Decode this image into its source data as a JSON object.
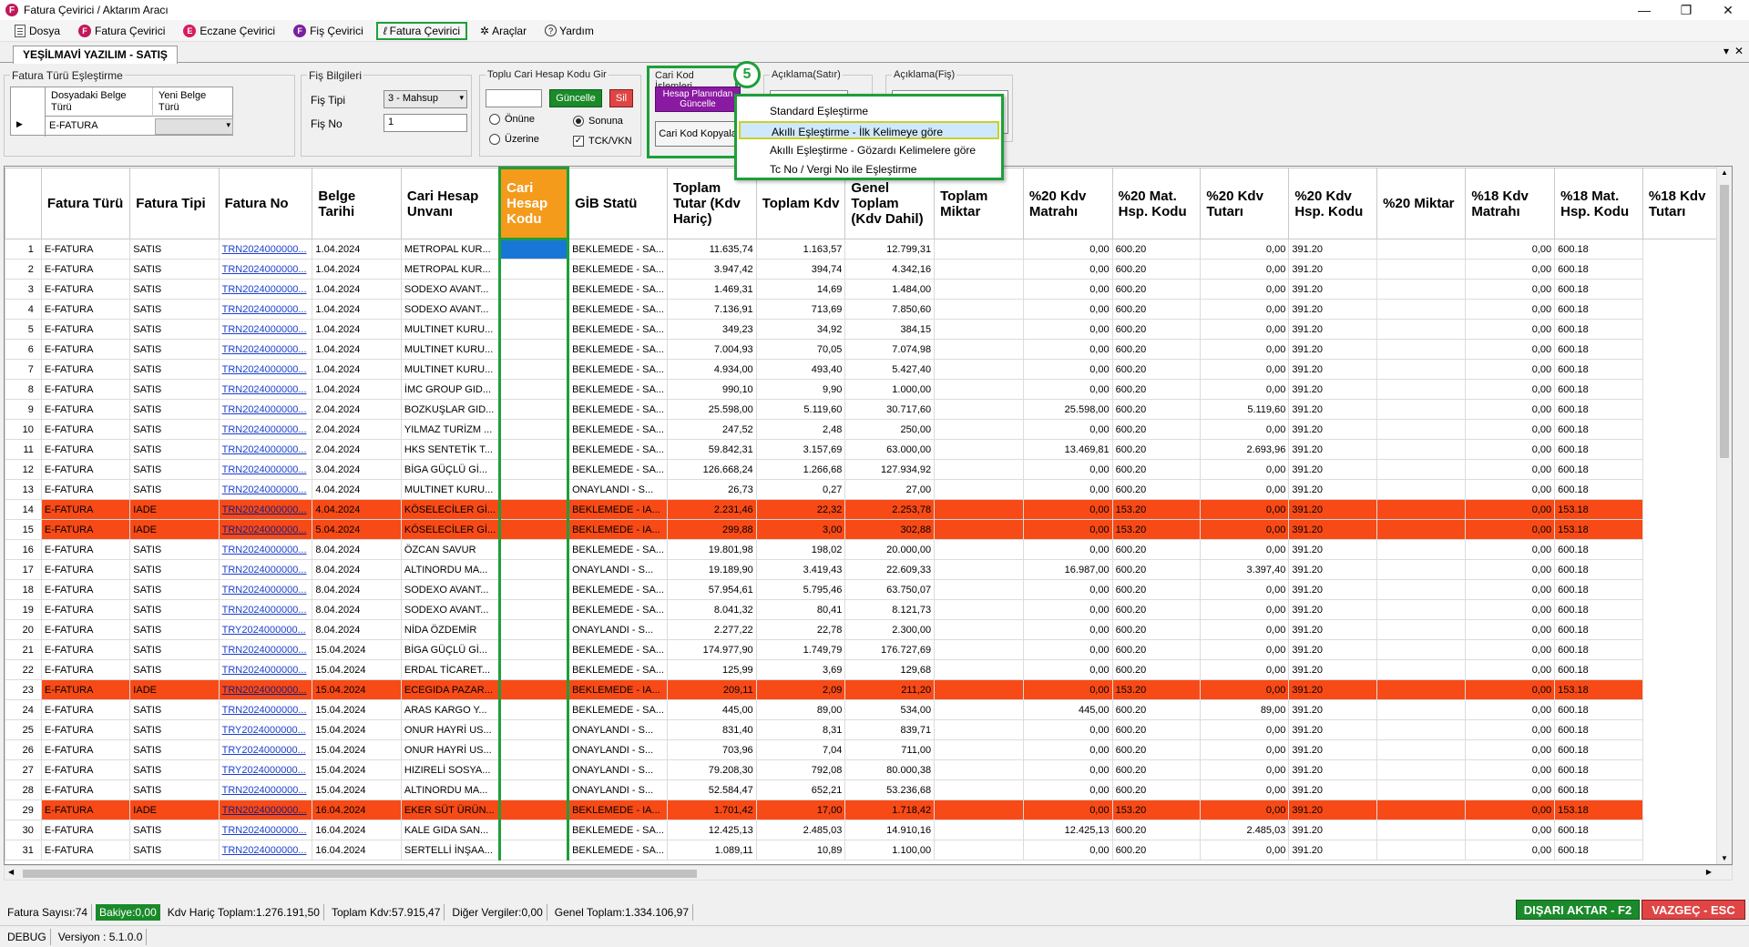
{
  "window": {
    "title": "Fatura Çevirici / Aktarım Aracı",
    "minimize": "—",
    "maximize": "❐",
    "close": "✕"
  },
  "menu": [
    {
      "label": "Dosya",
      "icon": "document-icon"
    },
    {
      "label": "Fatura Çevirici",
      "icon": "f-logo-icon",
      "color": "#c2185b",
      "glyph": "F"
    },
    {
      "label": "Eczane Çevirici",
      "icon": "e-logo-icon",
      "color": "#d81b60",
      "glyph": "E"
    },
    {
      "label": "Fiş Çevirici",
      "icon": "f-purple-icon",
      "color": "#7b1fa2",
      "glyph": "F"
    },
    {
      "label": "Fatura Çevirici",
      "icon": "e-script-icon",
      "glyph": "ℓ"
    },
    {
      "label": "Araçlar",
      "icon": "tools-icon",
      "glyph": "✲"
    },
    {
      "label": "Yardım",
      "icon": "help-icon",
      "glyph": "?"
    }
  ],
  "tab": {
    "label": "YEŞİLMAVİ YAZILIM - SATIŞ",
    "close": "✕",
    "chevron": "▾"
  },
  "fatura_turu": {
    "group": "Fatura Türü Eşleştirme",
    "col1": "Dosyadaki Belge Türü",
    "col2": "Yeni Belge Türü",
    "row_value": "E-FATURA",
    "row_marker": "▶"
  },
  "fis_bilgileri": {
    "group": "Fiş Bilgileri",
    "tip_label": "Fiş Tipi",
    "tip_value": "3 - Mahsup",
    "no_label": "Fiş No",
    "no_value": "1"
  },
  "toplu": {
    "group": "Toplu Cari Hesap Kodu Gir",
    "update": "Güncelle",
    "delete": "Sil",
    "onune": "Önüne",
    "sonuna": "Sonuna",
    "uzerine": "Üzerine",
    "tck": "TCK/VKN"
  },
  "cari_kod": {
    "group": "Cari Kod İşlemleri",
    "hesap_btn": "Hesap Planından Güncelle",
    "kopyala": "Cari Kod Kopyala",
    "badge": "5"
  },
  "aciklama_satir": {
    "group": "Açıklama(Satır)"
  },
  "aciklama_fis": {
    "group": "Açıklama(Fiş)"
  },
  "dropdown": [
    "Standard Eşleştirme",
    "Akıllı Eşleştirme - İlk Kelimeye göre",
    "Akıllı Eşleştirme - Gözardı Kelimelere göre",
    "Tc No / Vergi No ile Eşleştirme"
  ],
  "columns": [
    "Fatura Türü",
    "Fatura Tipi",
    "Fatura No",
    "Belge Tarihi",
    "Cari Hesap Unvanı",
    "Cari Hesap Kodu",
    "GİB Statü",
    "Toplam Tutar (Kdv Hariç)",
    "Toplam Kdv",
    "Genel Toplam (Kdv Dahil)",
    "Toplam Miktar",
    "%20 Kdv Matrahı",
    "%20 Mat. Hsp. Kodu",
    "%20 Kdv Tutarı",
    "%20 Kdv Hsp. Kodu",
    "%20 Miktar",
    "%18 Kdv Matrahı",
    "%18 Mat. Hsp. Kodu",
    "%18 Kdv Tutarı"
  ],
  "rows": [
    [
      "1",
      "E-FATURA",
      "SATIS",
      "TRN2024000000...",
      "1.04.2024",
      "METROPAL KUR...",
      "",
      "BEKLEMEDE - SA...",
      "11.635,74",
      "1.163,57",
      "12.799,31",
      "",
      "0,00",
      "600.20",
      "0,00",
      "391.20",
      "",
      "0,00",
      "600.18"
    ],
    [
      "2",
      "E-FATURA",
      "SATIS",
      "TRN2024000000...",
      "1.04.2024",
      "METROPAL KUR...",
      "",
      "BEKLEMEDE - SA...",
      "3.947,42",
      "394,74",
      "4.342,16",
      "",
      "0,00",
      "600.20",
      "0,00",
      "391.20",
      "",
      "0,00",
      "600.18"
    ],
    [
      "3",
      "E-FATURA",
      "SATIS",
      "TRN2024000000...",
      "1.04.2024",
      "SODEXO AVANT...",
      "",
      "BEKLEMEDE - SA...",
      "1.469,31",
      "14,69",
      "1.484,00",
      "",
      "0,00",
      "600.20",
      "0,00",
      "391.20",
      "",
      "0,00",
      "600.18"
    ],
    [
      "4",
      "E-FATURA",
      "SATIS",
      "TRN2024000000...",
      "1.04.2024",
      "SODEXO AVANT...",
      "",
      "BEKLEMEDE - SA...",
      "7.136,91",
      "713,69",
      "7.850,60",
      "",
      "0,00",
      "600.20",
      "0,00",
      "391.20",
      "",
      "0,00",
      "600.18"
    ],
    [
      "5",
      "E-FATURA",
      "SATIS",
      "TRN2024000000...",
      "1.04.2024",
      "MULTINET KURU...",
      "",
      "BEKLEMEDE - SA...",
      "349,23",
      "34,92",
      "384,15",
      "",
      "0,00",
      "600.20",
      "0,00",
      "391.20",
      "",
      "0,00",
      "600.18"
    ],
    [
      "6",
      "E-FATURA",
      "SATIS",
      "TRN2024000000...",
      "1.04.2024",
      "MULTINET KURU...",
      "",
      "BEKLEMEDE - SA...",
      "7.004,93",
      "70,05",
      "7.074,98",
      "",
      "0,00",
      "600.20",
      "0,00",
      "391.20",
      "",
      "0,00",
      "600.18"
    ],
    [
      "7",
      "E-FATURA",
      "SATIS",
      "TRN2024000000...",
      "1.04.2024",
      "MULTINET KURU...",
      "",
      "BEKLEMEDE - SA...",
      "4.934,00",
      "493,40",
      "5.427,40",
      "",
      "0,00",
      "600.20",
      "0,00",
      "391.20",
      "",
      "0,00",
      "600.18"
    ],
    [
      "8",
      "E-FATURA",
      "SATIS",
      "TRN2024000000...",
      "1.04.2024",
      "İMC GROUP GID...",
      "",
      "BEKLEMEDE - SA...",
      "990,10",
      "9,90",
      "1.000,00",
      "",
      "0,00",
      "600.20",
      "0,00",
      "391.20",
      "",
      "0,00",
      "600.18"
    ],
    [
      "9",
      "E-FATURA",
      "SATIS",
      "TRN2024000000...",
      "2.04.2024",
      "BOZKUŞLAR GID...",
      "",
      "BEKLEMEDE - SA...",
      "25.598,00",
      "5.119,60",
      "30.717,60",
      "",
      "25.598,00",
      "600.20",
      "5.119,60",
      "391.20",
      "",
      "0,00",
      "600.18"
    ],
    [
      "10",
      "E-FATURA",
      "SATIS",
      "TRN2024000000...",
      "2.04.2024",
      "YILMAZ TURİZM ...",
      "",
      "BEKLEMEDE - SA...",
      "247,52",
      "2,48",
      "250,00",
      "",
      "0,00",
      "600.20",
      "0,00",
      "391.20",
      "",
      "0,00",
      "600.18"
    ],
    [
      "11",
      "E-FATURA",
      "SATIS",
      "TRN2024000000...",
      "2.04.2024",
      "HKS SENTETİK T...",
      "",
      "BEKLEMEDE - SA...",
      "59.842,31",
      "3.157,69",
      "63.000,00",
      "",
      "13.469,81",
      "600.20",
      "2.693,96",
      "391.20",
      "",
      "0,00",
      "600.18"
    ],
    [
      "12",
      "E-FATURA",
      "SATIS",
      "TRN2024000000...",
      "3.04.2024",
      "BİGA GÜÇLÜ Gİ...",
      "",
      "BEKLEMEDE - SA...",
      "126.668,24",
      "1.266,68",
      "127.934,92",
      "",
      "0,00",
      "600.20",
      "0,00",
      "391.20",
      "",
      "0,00",
      "600.18"
    ],
    [
      "13",
      "E-FATURA",
      "SATIS",
      "TRN2024000000...",
      "4.04.2024",
      "MULTINET KURU...",
      "",
      "ONAYLANDI - S...",
      "26,73",
      "0,27",
      "27,00",
      "",
      "0,00",
      "600.20",
      "0,00",
      "391.20",
      "",
      "0,00",
      "600.18"
    ],
    [
      "14",
      "E-FATURA",
      "IADE",
      "TRN2024000000...",
      "4.04.2024",
      "KÖSELECİLER Gİ...",
      "",
      "BEKLEMEDE - IA...",
      "2.231,46",
      "22,32",
      "2.253,78",
      "",
      "0,00",
      "153.20",
      "0,00",
      "391.20",
      "",
      "0,00",
      "153.18"
    ],
    [
      "15",
      "E-FATURA",
      "IADE",
      "TRN2024000000...",
      "5.04.2024",
      "KÖSELECİLER Gİ...",
      "",
      "BEKLEMEDE - IA...",
      "299,88",
      "3,00",
      "302,88",
      "",
      "0,00",
      "153.20",
      "0,00",
      "391.20",
      "",
      "0,00",
      "153.18"
    ],
    [
      "16",
      "E-FATURA",
      "SATIS",
      "TRN2024000000...",
      "8.04.2024",
      "ÖZCAN SAVUR",
      "",
      "BEKLEMEDE - SA...",
      "19.801,98",
      "198,02",
      "20.000,00",
      "",
      "0,00",
      "600.20",
      "0,00",
      "391.20",
      "",
      "0,00",
      "600.18"
    ],
    [
      "17",
      "E-FATURA",
      "SATIS",
      "TRN2024000000...",
      "8.04.2024",
      "ALTINORDU MA...",
      "",
      "ONAYLANDI - S...",
      "19.189,90",
      "3.419,43",
      "22.609,33",
      "",
      "16.987,00",
      "600.20",
      "3.397,40",
      "391.20",
      "",
      "0,00",
      "600.18"
    ],
    [
      "18",
      "E-FATURA",
      "SATIS",
      "TRN2024000000...",
      "8.04.2024",
      "SODEXO AVANT...",
      "",
      "BEKLEMEDE - SA...",
      "57.954,61",
      "5.795,46",
      "63.750,07",
      "",
      "0,00",
      "600.20",
      "0,00",
      "391.20",
      "",
      "0,00",
      "600.18"
    ],
    [
      "19",
      "E-FATURA",
      "SATIS",
      "TRN2024000000...",
      "8.04.2024",
      "SODEXO AVANT...",
      "",
      "BEKLEMEDE - SA...",
      "8.041,32",
      "80,41",
      "8.121,73",
      "",
      "0,00",
      "600.20",
      "0,00",
      "391.20",
      "",
      "0,00",
      "600.18"
    ],
    [
      "20",
      "E-FATURA",
      "SATIS",
      "TRY2024000000...",
      "8.04.2024",
      "NİDA ÖZDEMİR",
      "",
      "ONAYLANDI - S...",
      "2.277,22",
      "22,78",
      "2.300,00",
      "",
      "0,00",
      "600.20",
      "0,00",
      "391.20",
      "",
      "0,00",
      "600.18"
    ],
    [
      "21",
      "E-FATURA",
      "SATIS",
      "TRN2024000000...",
      "15.04.2024",
      "BİGA GÜÇLÜ Gİ...",
      "",
      "BEKLEMEDE - SA...",
      "174.977,90",
      "1.749,79",
      "176.727,69",
      "",
      "0,00",
      "600.20",
      "0,00",
      "391.20",
      "",
      "0,00",
      "600.18"
    ],
    [
      "22",
      "E-FATURA",
      "SATIS",
      "TRN2024000000...",
      "15.04.2024",
      "ERDAL TİCARET...",
      "",
      "BEKLEMEDE - SA...",
      "125,99",
      "3,69",
      "129,68",
      "",
      "0,00",
      "600.20",
      "0,00",
      "391.20",
      "",
      "0,00",
      "600.18"
    ],
    [
      "23",
      "E-FATURA",
      "IADE",
      "TRN2024000000...",
      "15.04.2024",
      "ECEGIDA PAZAR...",
      "",
      "BEKLEMEDE - IA...",
      "209,11",
      "2,09",
      "211,20",
      "",
      "0,00",
      "153.20",
      "0,00",
      "391.20",
      "",
      "0,00",
      "153.18"
    ],
    [
      "24",
      "E-FATURA",
      "SATIS",
      "TRN2024000000...",
      "15.04.2024",
      "ARAS KARGO Y...",
      "",
      "BEKLEMEDE - SA...",
      "445,00",
      "89,00",
      "534,00",
      "",
      "445,00",
      "600.20",
      "89,00",
      "391.20",
      "",
      "0,00",
      "600.18"
    ],
    [
      "25",
      "E-FATURA",
      "SATIS",
      "TRY2024000000...",
      "15.04.2024",
      "ONUR HAYRİ US...",
      "",
      "ONAYLANDI - S...",
      "831,40",
      "8,31",
      "839,71",
      "",
      "0,00",
      "600.20",
      "0,00",
      "391.20",
      "",
      "0,00",
      "600.18"
    ],
    [
      "26",
      "E-FATURA",
      "SATIS",
      "TRY2024000000...",
      "15.04.2024",
      "ONUR HAYRİ US...",
      "",
      "ONAYLANDI - S...",
      "703,96",
      "7,04",
      "711,00",
      "",
      "0,00",
      "600.20",
      "0,00",
      "391.20",
      "",
      "0,00",
      "600.18"
    ],
    [
      "27",
      "E-FATURA",
      "SATIS",
      "TRY2024000000...",
      "15.04.2024",
      "HIZIRELİ SOSYA...",
      "",
      "ONAYLANDI - S...",
      "79.208,30",
      "792,08",
      "80.000,38",
      "",
      "0,00",
      "600.20",
      "0,00",
      "391.20",
      "",
      "0,00",
      "600.18"
    ],
    [
      "28",
      "E-FATURA",
      "SATIS",
      "TRN2024000000...",
      "15.04.2024",
      "ALTINORDU MA...",
      "",
      "ONAYLANDI - S...",
      "52.584,47",
      "652,21",
      "53.236,68",
      "",
      "0,00",
      "600.20",
      "0,00",
      "391.20",
      "",
      "0,00",
      "600.18"
    ],
    [
      "29",
      "E-FATURA",
      "IADE",
      "TRN2024000000...",
      "16.04.2024",
      "EKER SÜT ÜRÜN...",
      "",
      "BEKLEMEDE - IA...",
      "1.701,42",
      "17,00",
      "1.718,42",
      "",
      "0,00",
      "153.20",
      "0,00",
      "391.20",
      "",
      "0,00",
      "153.18"
    ],
    [
      "30",
      "E-FATURA",
      "SATIS",
      "TRN2024000000...",
      "16.04.2024",
      "KALE GIDA SAN...",
      "",
      "BEKLEMEDE - SA...",
      "12.425,13",
      "2.485,03",
      "14.910,16",
      "",
      "12.425,13",
      "600.20",
      "2.485,03",
      "391.20",
      "",
      "0,00",
      "600.18"
    ],
    [
      "31",
      "E-FATURA",
      "SATIS",
      "TRN2024000000...",
      "16.04.2024",
      "SERTELLİ İNŞAA...",
      "",
      "BEKLEMEDE - SA...",
      "1.089,11",
      "10,89",
      "1.100,00",
      "",
      "0,00",
      "600.20",
      "0,00",
      "391.20",
      "",
      "0,00",
      "600.18"
    ]
  ],
  "status": {
    "fatura_sayisi": "Fatura Sayısı:74",
    "bakiye": "Bakiye:0,00",
    "kdv_haric": "Kdv Hariç Toplam:1.276.191,50",
    "toplam_kdv": "Toplam Kdv:57.915,47",
    "diger": "Diğer Vergiler:0,00",
    "genel": "Genel Toplam:1.334.106,97"
  },
  "actions": {
    "export": "DIŞARI AKTAR - F2",
    "cancel": "VAZGEÇ - ESC"
  },
  "footer": {
    "mode": "DEBUG",
    "version": "Versiyon : 5.1.0.0"
  },
  "colors": {
    "accent_green": "#1e9f3a",
    "iade_row": "#f84a16",
    "cari_header": "#f49b1c",
    "link": "#1a3fd0",
    "export_btn": "#1a8a2a",
    "cancel_btn": "#e04545"
  }
}
